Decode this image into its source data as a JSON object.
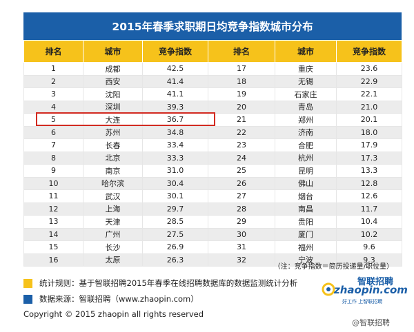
{
  "title": "2015年春季求职期日均竞争指数城市分布",
  "table": {
    "headers": [
      "排名",
      "城市",
      "竞争指数",
      "排名",
      "城市",
      "竞争指数"
    ],
    "rows": [
      [
        "1",
        "成都",
        "42.5",
        "17",
        "重庆",
        "23.6"
      ],
      [
        "2",
        "西安",
        "41.4",
        "18",
        "无锡",
        "22.9"
      ],
      [
        "3",
        "沈阳",
        "41.1",
        "19",
        "石家庄",
        "22.1"
      ],
      [
        "4",
        "深圳",
        "39.3",
        "20",
        "青岛",
        "21.0"
      ],
      [
        "5",
        "大连",
        "36.7",
        "21",
        "郑州",
        "20.1"
      ],
      [
        "6",
        "苏州",
        "34.8",
        "22",
        "济南",
        "18.0"
      ],
      [
        "7",
        "长春",
        "33.4",
        "23",
        "合肥",
        "17.9"
      ],
      [
        "8",
        "北京",
        "33.3",
        "24",
        "杭州",
        "17.3"
      ],
      [
        "9",
        "南京",
        "31.0",
        "25",
        "昆明",
        "13.3"
      ],
      [
        "10",
        "哈尔滨",
        "30.4",
        "26",
        "佛山",
        "12.8"
      ],
      [
        "11",
        "武汉",
        "30.1",
        "27",
        "烟台",
        "12.6"
      ],
      [
        "12",
        "上海",
        "29.7",
        "28",
        "南昌",
        "11.7"
      ],
      [
        "13",
        "天津",
        "28.5",
        "29",
        "贵阳",
        "10.4"
      ],
      [
        "14",
        "广州",
        "27.5",
        "30",
        "厦门",
        "10.2"
      ],
      [
        "15",
        "长沙",
        "26.9",
        "31",
        "福州",
        "9.6"
      ],
      [
        "16",
        "太原",
        "26.3",
        "32",
        "宁波",
        "9.3"
      ]
    ]
  },
  "note": "（注：竞争指数＝简历投递量/职位量）",
  "legend": {
    "rule": "统计规则：基于智联招聘2015年春季在线招聘数据库的数据监测统计分析",
    "source": "数据来源：智联招聘（www.zhaopin.com）"
  },
  "logo": {
    "cn": "智联招聘",
    "en": "zhaopin.com",
    "tagline": "好工作 上智联招聘"
  },
  "copyright": "Copyright  ©  2015 zhaopin all rights reserved",
  "watermark": "@智联招聘",
  "colors": {
    "header_blue": "#1b5fa8",
    "header_yellow": "#f6c21b",
    "highlight_red": "#d22a20",
    "row_gray": "#ececec"
  }
}
